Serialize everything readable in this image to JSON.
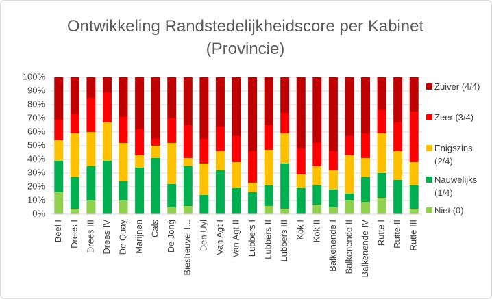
{
  "chart_data": {
    "type": "stacked_bar",
    "title": "Ontwikkeling Randstedelijkheidscore per Kabinet (Provincie)",
    "categories": [
      "Beel I",
      "Drees I",
      "Drees III",
      "Drees IV",
      "De Quay",
      "Marijnen",
      "Cals",
      "De Jong",
      "Biesheuvel I...",
      "Den Uyl",
      "Van Agt I",
      "Van Agt II",
      "Lubbers I",
      "Lubbers II",
      "Lubbers III",
      "Kok I",
      "Kok II",
      "Balkenende I",
      "Balkenende II",
      "Balkenende IV",
      "Rutte I",
      "Rutte II",
      "Rutte III"
    ],
    "series": [
      {
        "name": "Niet (0)",
        "color": "#92d050",
        "values": [
          16,
          4,
          10,
          0,
          10,
          0,
          0,
          5,
          6,
          0,
          0,
          0,
          0,
          6,
          4,
          0,
          7,
          5,
          10,
          9,
          12,
          0,
          4
        ]
      },
      {
        "name": "Nauwelijks (1/4)",
        "color": "#00b050",
        "values": [
          23,
          23,
          25,
          39,
          14,
          34,
          41,
          17,
          29,
          14,
          32,
          19,
          16,
          15,
          33,
          19,
          14,
          13,
          5,
          18,
          18,
          25,
          17
        ]
      },
      {
        "name": "Enigszins (2/4)",
        "color": "#ffc000",
        "values": [
          15,
          32,
          25,
          28,
          28,
          9,
          9,
          30,
          6,
          23,
          14,
          19,
          7,
          26,
          22,
          10,
          14,
          14,
          28,
          14,
          29,
          21,
          17
        ]
      },
      {
        "name": "Zeer (3/4)",
        "color": "#ff0000",
        "values": [
          15,
          14,
          25,
          22,
          19,
          19,
          5,
          18,
          24,
          18,
          18,
          19,
          23,
          18,
          15,
          19,
          17,
          14,
          14,
          18,
          17,
          21,
          37
        ]
      },
      {
        "name": "Zuiver (4/4)",
        "color": "#c00000",
        "values": [
          31,
          27,
          15,
          11,
          29,
          38,
          45,
          30,
          35,
          45,
          36,
          43,
          54,
          35,
          26,
          52,
          48,
          54,
          43,
          41,
          24,
          33,
          25
        ]
      }
    ],
    "ylim": [
      0,
      100
    ],
    "yticks": [
      {
        "value": 0,
        "label": "0%"
      },
      {
        "value": 10,
        "label": "10%"
      },
      {
        "value": 20,
        "label": "20%"
      },
      {
        "value": 30,
        "label": "30%"
      },
      {
        "value": 40,
        "label": "40%"
      },
      {
        "value": 50,
        "label": "50%"
      },
      {
        "value": 60,
        "label": "60%"
      },
      {
        "value": 70,
        "label": "70%"
      },
      {
        "value": 80,
        "label": "80%"
      },
      {
        "value": 90,
        "label": "90%"
      },
      {
        "value": 100,
        "label": "100%"
      }
    ],
    "grid": true,
    "legend": "right"
  }
}
